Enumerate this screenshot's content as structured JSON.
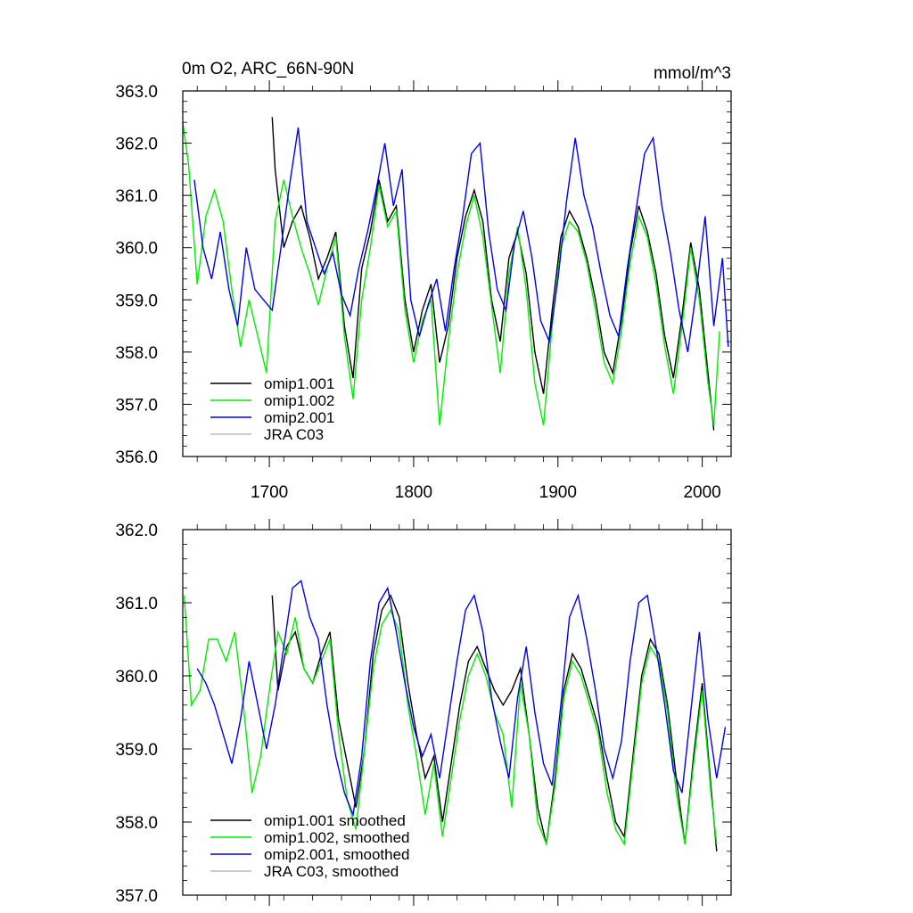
{
  "chart_data": [
    {
      "type": "line",
      "title": "0m O2, ARC_66N-90N",
      "units": "mmol/m^3",
      "xlim": [
        1640,
        2020
      ],
      "ylim": [
        356.0,
        363.0
      ],
      "xticks": [
        1700,
        1800,
        1900,
        2000
      ],
      "xtick_labels": [
        "1700",
        "1800",
        "1900",
        "2000"
      ],
      "yticks": [
        356.0,
        357.0,
        358.0,
        359.0,
        360.0,
        361.0,
        362.0,
        363.0
      ],
      "ytick_labels": [
        "356.0",
        "357.0",
        "358.0",
        "359.0",
        "360.0",
        "361.0",
        "362.0",
        "363.0"
      ],
      "legend_position": "bottom-left",
      "series": [
        {
          "name": "omip1.001",
          "color": "#000000",
          "x": [
            1702,
            1704,
            1710,
            1716,
            1722,
            1728,
            1734,
            1740,
            1746,
            1752,
            1758,
            1764,
            1770,
            1776,
            1782,
            1788,
            1794,
            1800,
            1806,
            1812,
            1818,
            1824,
            1830,
            1836,
            1842,
            1848,
            1854,
            1860,
            1866,
            1872,
            1878,
            1884,
            1890,
            1896,
            1902,
            1908,
            1914,
            1920,
            1926,
            1932,
            1938,
            1944,
            1950,
            1956,
            1962,
            1968,
            1974,
            1980,
            1986,
            1992,
            1998,
            2004,
            2008
          ],
          "y": [
            362.5,
            361.5,
            360.0,
            360.5,
            360.8,
            360.2,
            359.4,
            359.8,
            360.3,
            358.5,
            357.5,
            359.6,
            360.3,
            361.3,
            360.5,
            360.8,
            359.0,
            358.0,
            358.8,
            359.3,
            357.8,
            358.5,
            359.8,
            360.6,
            361.1,
            360.5,
            359.0,
            358.2,
            359.8,
            360.3,
            359.5,
            358.0,
            357.2,
            358.8,
            360.2,
            360.7,
            360.4,
            359.8,
            359.0,
            358.0,
            357.6,
            358.6,
            359.9,
            360.8,
            360.3,
            359.5,
            358.3,
            357.5,
            358.7,
            360.1,
            359.2,
            357.6,
            356.5
          ]
        },
        {
          "name": "omip1.002",
          "color": "#00ee00",
          "x": [
            1640,
            1644,
            1650,
            1656,
            1662,
            1668,
            1674,
            1680,
            1686,
            1692,
            1698,
            1704,
            1710,
            1716,
            1722,
            1728,
            1734,
            1740,
            1746,
            1752,
            1758,
            1764,
            1770,
            1776,
            1782,
            1788,
            1794,
            1800,
            1806,
            1812,
            1818,
            1824,
            1830,
            1836,
            1842,
            1848,
            1854,
            1860,
            1866,
            1872,
            1878,
            1884,
            1890,
            1896,
            1902,
            1908,
            1914,
            1920,
            1926,
            1932,
            1938,
            1944,
            1950,
            1956,
            1962,
            1968,
            1974,
            1980,
            1986,
            1992,
            1998,
            2004,
            2008,
            2012
          ],
          "y": [
            362.4,
            361.6,
            359.3,
            360.6,
            361.1,
            360.5,
            359.2,
            358.1,
            359.0,
            358.3,
            357.6,
            360.5,
            361.3,
            360.6,
            360.0,
            359.5,
            358.9,
            359.6,
            360.2,
            358.3,
            357.1,
            359.0,
            360.0,
            361.2,
            360.4,
            360.7,
            358.8,
            357.8,
            358.6,
            359.0,
            356.6,
            358.2,
            359.5,
            360.4,
            361.0,
            360.2,
            358.9,
            357.6,
            359.5,
            360.4,
            359.2,
            357.4,
            356.6,
            358.5,
            360.0,
            360.5,
            360.3,
            359.7,
            358.8,
            357.8,
            357.4,
            358.4,
            359.7,
            360.6,
            360.2,
            359.3,
            358.1,
            357.2,
            358.5,
            360.0,
            359.0,
            357.4,
            356.6,
            358.4
          ]
        },
        {
          "name": "omip2.001",
          "color": "#0000ee",
          "x": [
            1648,
            1654,
            1660,
            1666,
            1672,
            1678,
            1684,
            1690,
            1696,
            1702,
            1708,
            1714,
            1720,
            1726,
            1732,
            1738,
            1744,
            1750,
            1756,
            1762,
            1768,
            1774,
            1780,
            1786,
            1792,
            1798,
            1804,
            1810,
            1816,
            1822,
            1828,
            1834,
            1840,
            1846,
            1852,
            1858,
            1864,
            1870,
            1876,
            1882,
            1888,
            1894,
            1900,
            1906,
            1912,
            1918,
            1924,
            1930,
            1936,
            1942,
            1948,
            1954,
            1960,
            1966,
            1972,
            1978,
            1984,
            1990,
            1996,
            2002,
            2008,
            2014,
            2018
          ],
          "y": [
            361.3,
            360.0,
            359.4,
            360.3,
            359.2,
            358.5,
            360.0,
            359.2,
            359.0,
            358.8,
            360.0,
            361.2,
            362.3,
            360.5,
            360.0,
            359.5,
            359.9,
            359.1,
            358.7,
            359.6,
            360.3,
            361.1,
            362.0,
            360.8,
            361.5,
            359.0,
            358.3,
            358.9,
            359.4,
            358.4,
            359.6,
            360.6,
            361.8,
            362.0,
            360.3,
            359.2,
            358.8,
            360.1,
            360.7,
            359.8,
            358.6,
            358.2,
            359.4,
            360.9,
            362.1,
            361.0,
            360.4,
            359.5,
            358.7,
            358.3,
            359.6,
            360.7,
            361.8,
            362.1,
            360.8,
            359.9,
            358.8,
            358.0,
            359.2,
            360.6,
            358.5,
            359.8,
            358.1
          ]
        },
        {
          "name": "JRA C03",
          "color": "#bbbbbb",
          "x": [],
          "y": []
        }
      ]
    },
    {
      "type": "line",
      "title": "",
      "xlim": [
        1640,
        2020
      ],
      "ylim": [
        357.0,
        362.0
      ],
      "yticks": [
        357.0,
        358.0,
        359.0,
        360.0,
        361.0,
        362.0
      ],
      "ytick_labels": [
        "357.0",
        "358.0",
        "359.0",
        "360.0",
        "361.0",
        "362.0"
      ],
      "legend_position": "bottom-left",
      "series": [
        {
          "name": "omip1.001 smoothed",
          "color": "#000000",
          "x": [
            1702,
            1706,
            1712,
            1718,
            1724,
            1730,
            1736,
            1742,
            1748,
            1754,
            1760,
            1766,
            1772,
            1778,
            1784,
            1790,
            1796,
            1802,
            1808,
            1814,
            1820,
            1826,
            1832,
            1838,
            1844,
            1850,
            1856,
            1862,
            1868,
            1874,
            1880,
            1886,
            1892,
            1898,
            1904,
            1910,
            1916,
            1922,
            1928,
            1934,
            1940,
            1946,
            1952,
            1958,
            1964,
            1970,
            1976,
            1982,
            1988,
            1994,
            2000,
            2006,
            2010
          ],
          "y": [
            361.1,
            359.8,
            360.4,
            360.6,
            360.1,
            359.9,
            360.3,
            360.6,
            359.4,
            358.8,
            358.2,
            359.0,
            360.3,
            360.9,
            361.1,
            360.8,
            359.9,
            359.2,
            358.6,
            358.9,
            358.0,
            358.8,
            359.6,
            360.2,
            360.4,
            360.1,
            359.8,
            359.6,
            359.8,
            360.1,
            359.2,
            358.2,
            357.7,
            358.6,
            359.8,
            360.3,
            360.1,
            359.7,
            359.3,
            358.6,
            358.0,
            357.8,
            358.9,
            360.0,
            360.5,
            360.3,
            359.6,
            358.6,
            357.7,
            358.9,
            359.9,
            358.5,
            357.6
          ]
        },
        {
          "name": "omip1.002, smoothed",
          "color": "#00ee00",
          "x": [
            1641,
            1646,
            1652,
            1658,
            1664,
            1670,
            1676,
            1682,
            1688,
            1694,
            1700,
            1706,
            1712,
            1718,
            1724,
            1730,
            1736,
            1742,
            1748,
            1754,
            1760,
            1766,
            1772,
            1778,
            1784,
            1790,
            1796,
            1802,
            1808,
            1814,
            1820,
            1826,
            1832,
            1838,
            1844,
            1850,
            1856,
            1862,
            1868,
            1874,
            1880,
            1886,
            1892,
            1898,
            1904,
            1910,
            1916,
            1922,
            1928,
            1934,
            1940,
            1946,
            1952,
            1958,
            1964,
            1970,
            1976,
            1982,
            1988,
            1994,
            2000,
            2006,
            2010
          ],
          "y": [
            361.1,
            359.6,
            359.8,
            360.5,
            360.5,
            360.2,
            360.6,
            359.6,
            358.4,
            358.9,
            359.8,
            360.6,
            360.3,
            360.8,
            360.1,
            359.9,
            360.2,
            360.5,
            359.2,
            358.3,
            357.9,
            359.0,
            360.1,
            360.7,
            360.9,
            360.6,
            359.6,
            358.9,
            358.1,
            358.8,
            357.8,
            358.6,
            359.4,
            360.0,
            360.3,
            360.0,
            359.5,
            359.2,
            358.2,
            359.9,
            359.2,
            358.0,
            357.7,
            358.5,
            359.7,
            360.2,
            360.0,
            359.6,
            359.2,
            358.4,
            357.9,
            357.7,
            358.8,
            359.9,
            360.4,
            360.2,
            359.5,
            358.4,
            357.7,
            358.8,
            359.8,
            358.4,
            357.7
          ]
        },
        {
          "name": "omip2.001, smoothed",
          "color": "#0000ee",
          "x": [
            1650,
            1656,
            1662,
            1668,
            1674,
            1680,
            1686,
            1692,
            1698,
            1704,
            1710,
            1716,
            1722,
            1728,
            1734,
            1740,
            1746,
            1752,
            1758,
            1764,
            1770,
            1776,
            1782,
            1788,
            1794,
            1800,
            1806,
            1812,
            1818,
            1824,
            1830,
            1836,
            1842,
            1848,
            1854,
            1860,
            1866,
            1872,
            1878,
            1884,
            1890,
            1896,
            1902,
            1908,
            1914,
            1920,
            1926,
            1932,
            1938,
            1944,
            1950,
            1956,
            1962,
            1968,
            1974,
            1980,
            1986,
            1992,
            1998,
            2004,
            2010,
            2016
          ],
          "y": [
            360.1,
            359.9,
            359.6,
            359.2,
            358.8,
            359.4,
            360.2,
            359.6,
            359.0,
            359.6,
            360.4,
            361.2,
            361.3,
            360.8,
            360.5,
            359.6,
            358.9,
            358.4,
            358.1,
            358.9,
            360.2,
            361.0,
            361.2,
            360.6,
            359.9,
            359.3,
            358.9,
            359.2,
            358.6,
            359.4,
            360.2,
            360.9,
            361.1,
            360.6,
            359.7,
            359.1,
            358.6,
            359.7,
            360.4,
            359.5,
            358.8,
            358.5,
            359.6,
            360.8,
            361.1,
            360.5,
            359.8,
            359.0,
            358.6,
            359.1,
            360.2,
            361.0,
            361.1,
            360.4,
            359.6,
            358.7,
            358.4,
            359.5,
            360.6,
            359.4,
            358.6,
            359.3
          ]
        },
        {
          "name": "JRA C03, smoothed",
          "color": "#bbbbbb",
          "x": [],
          "y": []
        }
      ]
    }
  ]
}
